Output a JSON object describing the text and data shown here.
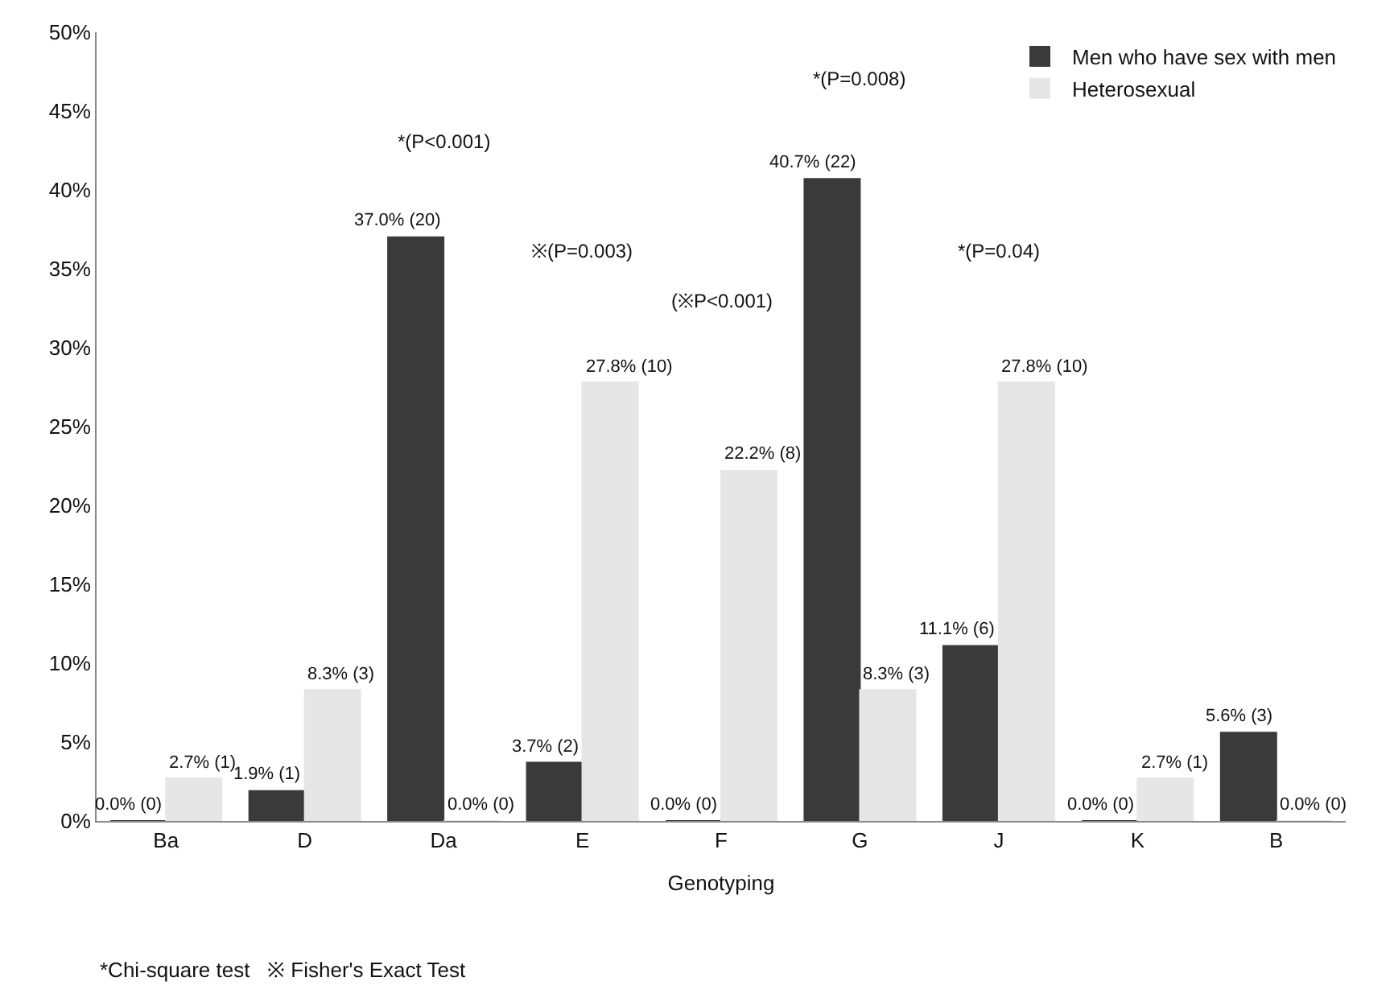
{
  "chart_data": {
    "type": "bar",
    "xlabel": "Genotyping",
    "categories": [
      "Ba",
      "D",
      "Da",
      "E",
      "F",
      "G",
      "J",
      "K",
      "B"
    ],
    "series": [
      {
        "name": "Men who have sex with men",
        "color": "#3a3a3a",
        "values": [
          0.0,
          1.9,
          37.0,
          3.7,
          0.0,
          40.7,
          11.1,
          0.0,
          5.6
        ],
        "value_labels": [
          "0.0% (0)",
          "1.9% (1)",
          "37.0% (20)",
          "3.7% (2)",
          "0.0% (0)",
          "40.7% (22)",
          "11.1% (6)",
          "0.0% (0)",
          "5.6% (3)"
        ]
      },
      {
        "name": "Heterosexual",
        "color": "#e6e6e6",
        "values": [
          2.7,
          8.3,
          0.0,
          27.8,
          22.2,
          8.3,
          27.8,
          2.7,
          0.0
        ],
        "value_labels": [
          "2.7% (1)",
          "8.3% (3)",
          "0.0% (0)",
          "27.8% (10)",
          "22.2% (8)",
          "8.3% (3)",
          "27.8% (10)",
          "2.7% (1)",
          "0.0% (0)"
        ]
      }
    ],
    "ylim": [
      0,
      50
    ],
    "yticks": [
      {
        "value": 0,
        "label": "0%"
      },
      {
        "value": 5,
        "label": "5%"
      },
      {
        "value": 10,
        "label": "10%"
      },
      {
        "value": 15,
        "label": "15%"
      },
      {
        "value": 20,
        "label": "20%"
      },
      {
        "value": 25,
        "label": "25%"
      },
      {
        "value": 30,
        "label": "30%"
      },
      {
        "value": 35,
        "label": "35%"
      },
      {
        "value": 40,
        "label": "40%"
      },
      {
        "value": 45,
        "label": "45%"
      },
      {
        "value": 50,
        "label": "50%"
      }
    ],
    "legend": "top right",
    "annotations": [
      "*(P<0.001)",
      "※(P=0.003)",
      "(※P<0.001)",
      "*(P=0.008)",
      "*(P=0.04)",
      "*Chi-square test   ※ Fisher's Exact Test"
    ]
  }
}
